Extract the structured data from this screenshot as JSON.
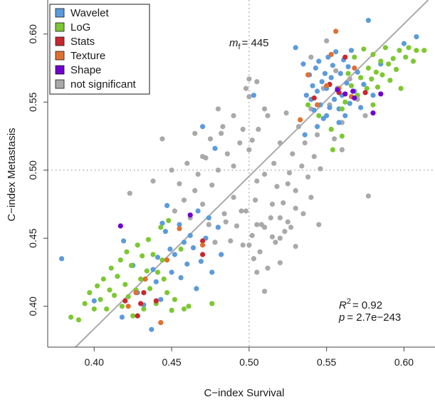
{
  "chart_data": {
    "type": "scatter",
    "title": "",
    "xlabel": "C−index Survival",
    "ylabel": "C−index Metastasis",
    "xlim": [
      0.37,
      0.62
    ],
    "ylim": [
      0.37,
      0.625
    ],
    "xticks": [
      0.4,
      0.45,
      0.5,
      0.55,
      0.6
    ],
    "xtick_labels": [
      "0.40",
      "0.45",
      "0.50",
      "0.55",
      "0.60"
    ],
    "yticks": [
      0.4,
      0.45,
      0.5,
      0.55,
      0.6
    ],
    "ytick_labels": [
      "0.40",
      "0.45",
      "0.50",
      "0.55",
      "0.60"
    ],
    "grid": false,
    "legend_position": "top-left",
    "reference_lines": {
      "vertical_x": 0.5,
      "horizontal_y": 0.5,
      "style": "dotted"
    },
    "regression_line": {
      "slope": 1.12,
      "intercept": -0.0645,
      "color": "#aaaaaa"
    },
    "annotations": {
      "mf_base": "m",
      "mf_sub": "f",
      "mf_value": "= 445",
      "r2_base": "R",
      "r2_sup": "2",
      "r2_value": "= 0.92",
      "p_base": "p",
      "p_value": "= 2.7e−243"
    },
    "series": [
      {
        "name": "Wavelet",
        "color": "#5b9bdc",
        "points": [
          [
            0.379,
            0.435
          ],
          [
            0.4,
            0.404
          ],
          [
            0.418,
            0.392
          ],
          [
            0.419,
            0.448
          ],
          [
            0.425,
            0.43
          ],
          [
            0.428,
            0.41
          ],
          [
            0.432,
            0.401
          ],
          [
            0.433,
            0.42
          ],
          [
            0.437,
            0.383
          ],
          [
            0.438,
            0.427
          ],
          [
            0.44,
            0.418
          ],
          [
            0.441,
            0.436
          ],
          [
            0.443,
            0.405
          ],
          [
            0.444,
            0.461
          ],
          [
            0.446,
            0.455
          ],
          [
            0.447,
            0.474
          ],
          [
            0.449,
            0.442
          ],
          [
            0.45,
            0.425
          ],
          [
            0.452,
            0.438
          ],
          [
            0.455,
            0.46
          ],
          [
            0.456,
            0.421
          ],
          [
            0.458,
            0.447
          ],
          [
            0.46,
            0.431
          ],
          [
            0.462,
            0.452
          ],
          [
            0.464,
            0.443
          ],
          [
            0.466,
            0.413
          ],
          [
            0.467,
            0.47
          ],
          [
            0.469,
            0.433
          ],
          [
            0.47,
            0.532
          ],
          [
            0.472,
            0.45
          ],
          [
            0.474,
            0.465
          ],
          [
            0.476,
            0.425
          ],
          [
            0.478,
            0.516
          ],
          [
            0.48,
            0.458
          ],
          [
            0.482,
            0.438
          ],
          [
            0.503,
            0.555
          ],
          [
            0.53,
            0.59
          ],
          [
            0.535,
            0.578
          ],
          [
            0.537,
            0.555
          ],
          [
            0.539,
            0.57
          ],
          [
            0.54,
            0.552
          ],
          [
            0.541,
            0.562
          ],
          [
            0.542,
            0.544
          ],
          [
            0.543,
            0.575
          ],
          [
            0.544,
            0.558
          ],
          [
            0.545,
            0.58
          ],
          [
            0.546,
            0.548
          ],
          [
            0.547,
            0.565
          ],
          [
            0.548,
            0.538
          ],
          [
            0.549,
            0.571
          ],
          [
            0.55,
            0.56
          ],
          [
            0.551,
            0.583
          ],
          [
            0.552,
            0.546
          ],
          [
            0.553,
            0.568
          ],
          [
            0.554,
            0.577
          ],
          [
            0.555,
            0.552
          ],
          [
            0.556,
            0.587
          ],
          [
            0.557,
            0.56
          ],
          [
            0.558,
            0.545
          ],
          [
            0.559,
            0.571
          ],
          [
            0.56,
            0.555
          ],
          [
            0.561,
            0.581
          ],
          [
            0.562,
            0.54
          ],
          [
            0.563,
            0.564
          ],
          [
            0.564,
            0.576
          ],
          [
            0.565,
            0.549
          ],
          [
            0.566,
            0.588
          ],
          [
            0.568,
            0.558
          ],
          [
            0.57,
            0.572
          ],
          [
            0.572,
            0.546
          ],
          [
            0.574,
            0.563
          ],
          [
            0.577,
            0.61
          ],
          [
            0.58,
            0.555
          ],
          [
            0.585,
            0.578
          ],
          [
            0.6,
            0.593
          ],
          [
            0.608,
            0.598
          ],
          [
            0.536,
            0.526
          ],
          [
            0.544,
            0.532
          ],
          [
            0.55,
            0.54
          ],
          [
            0.558,
            0.535
          ]
        ]
      },
      {
        "name": "LoG",
        "color": "#7dc832",
        "points": [
          [
            0.385,
            0.392
          ],
          [
            0.39,
            0.39
          ],
          [
            0.394,
            0.402
          ],
          [
            0.397,
            0.41
          ],
          [
            0.4,
            0.398
          ],
          [
            0.402,
            0.415
          ],
          [
            0.404,
            0.405
          ],
          [
            0.406,
            0.42
          ],
          [
            0.408,
            0.398
          ],
          [
            0.41,
            0.412
          ],
          [
            0.411,
            0.428
          ],
          [
            0.413,
            0.408
          ],
          [
            0.415,
            0.422
          ],
          [
            0.417,
            0.434
          ],
          [
            0.418,
            0.4
          ],
          [
            0.42,
            0.416
          ],
          [
            0.421,
            0.44
          ],
          [
            0.422,
            0.407
          ],
          [
            0.424,
            0.43
          ],
          [
            0.425,
            0.393
          ],
          [
            0.427,
            0.412
          ],
          [
            0.428,
            0.445
          ],
          [
            0.43,
            0.42
          ],
          [
            0.431,
            0.437
          ],
          [
            0.432,
            0.398
          ],
          [
            0.434,
            0.426
          ],
          [
            0.435,
            0.449
          ],
          [
            0.436,
            0.413
          ],
          [
            0.438,
            0.438
          ],
          [
            0.44,
            0.402
          ],
          [
            0.441,
            0.425
          ],
          [
            0.443,
            0.458
          ],
          [
            0.444,
            0.434
          ],
          [
            0.445,
            0.42
          ],
          [
            0.447,
            0.41
          ],
          [
            0.448,
            0.463
          ],
          [
            0.45,
            0.397
          ],
          [
            0.452,
            0.405
          ],
          [
            0.456,
            0.442
          ],
          [
            0.458,
            0.398
          ],
          [
            0.461,
            0.4
          ],
          [
            0.476,
            0.402
          ],
          [
            0.538,
            0.548
          ],
          [
            0.545,
            0.54
          ],
          [
            0.553,
            0.53
          ],
          [
            0.56,
            0.525
          ],
          [
            0.562,
            0.55
          ],
          [
            0.564,
            0.571
          ],
          [
            0.566,
            0.562
          ],
          [
            0.568,
            0.583
          ],
          [
            0.57,
            0.555
          ],
          [
            0.572,
            0.568
          ],
          [
            0.574,
            0.589
          ],
          [
            0.576,
            0.56
          ],
          [
            0.577,
            0.575
          ],
          [
            0.579,
            0.567
          ],
          [
            0.58,
            0.585
          ],
          [
            0.582,
            0.572
          ],
          [
            0.583,
            0.561
          ],
          [
            0.585,
            0.58
          ],
          [
            0.586,
            0.57
          ],
          [
            0.588,
            0.59
          ],
          [
            0.59,
            0.578
          ],
          [
            0.591,
            0.566
          ],
          [
            0.593,
            0.582
          ],
          [
            0.595,
            0.574
          ],
          [
            0.597,
            0.588
          ],
          [
            0.598,
            0.56
          ],
          [
            0.601,
            0.583
          ],
          [
            0.603,
            0.59
          ],
          [
            0.606,
            0.58
          ],
          [
            0.608,
            0.588
          ],
          [
            0.613,
            0.588
          ],
          [
            0.554,
            0.515
          ],
          [
            0.58,
            0.548
          ],
          [
            0.56,
            0.545
          ]
        ]
      },
      {
        "name": "Stats",
        "color": "#c8282d",
        "points": [
          [
            0.42,
            0.404
          ],
          [
            0.428,
            0.393
          ],
          [
            0.43,
            0.402
          ],
          [
            0.432,
            0.41
          ],
          [
            0.44,
            0.404
          ],
          [
            0.47,
            0.438
          ],
          [
            0.47,
            0.448
          ],
          [
            0.542,
            0.553
          ],
          [
            0.552,
            0.563
          ],
          [
            0.558,
            0.557
          ],
          [
            0.562,
            0.583
          ],
          [
            0.575,
            0.557
          ]
        ]
      },
      {
        "name": "Texture",
        "color": "#e07030",
        "points": [
          [
            0.422,
            0.4
          ],
          [
            0.427,
            0.41
          ],
          [
            0.433,
            0.42
          ],
          [
            0.443,
            0.388
          ],
          [
            0.447,
            0.434
          ],
          [
            0.455,
            0.457
          ],
          [
            0.47,
            0.445
          ],
          [
            0.533,
            0.537
          ],
          [
            0.538,
            0.57
          ],
          [
            0.544,
            0.548
          ],
          [
            0.55,
            0.562
          ],
          [
            0.553,
            0.585
          ],
          [
            0.556,
            0.602
          ],
          [
            0.558,
            0.56
          ],
          [
            0.566,
            0.554
          ],
          [
            0.568,
            0.575
          ]
        ]
      },
      {
        "name": "Shape",
        "color": "#7000d0",
        "points": [
          [
            0.417,
            0.459
          ],
          [
            0.462,
            0.467
          ],
          [
            0.557,
            0.559
          ],
          [
            0.562,
            0.556
          ],
          [
            0.567,
            0.558
          ],
          [
            0.568,
            0.553
          ],
          [
            0.58,
            0.542
          ],
          [
            0.585,
            0.556
          ]
        ]
      },
      {
        "name": "not significant",
        "color": "#a9a9a9",
        "points": [
          [
            0.423,
            0.483
          ],
          [
            0.438,
            0.492
          ],
          [
            0.444,
            0.523
          ],
          [
            0.45,
            0.5
          ],
          [
            0.452,
            0.47
          ],
          [
            0.455,
            0.49
          ],
          [
            0.458,
            0.478
          ],
          [
            0.46,
            0.505
          ],
          [
            0.462,
            0.465
          ],
          [
            0.465,
            0.485
          ],
          [
            0.467,
            0.497
          ],
          [
            0.47,
            0.475
          ],
          [
            0.472,
            0.509
          ],
          [
            0.474,
            0.46
          ],
          [
            0.476,
            0.489
          ],
          [
            0.478,
            0.447
          ],
          [
            0.48,
            0.5
          ],
          [
            0.482,
            0.527
          ],
          [
            0.484,
            0.468
          ],
          [
            0.486,
            0.512
          ],
          [
            0.488,
            0.448
          ],
          [
            0.49,
            0.503
          ],
          [
            0.492,
            0.459
          ],
          [
            0.494,
            0.52
          ],
          [
            0.496,
            0.445
          ],
          [
            0.498,
            0.47
          ],
          [
            0.5,
            0.515
          ],
          [
            0.502,
            0.452
          ],
          [
            0.504,
            0.478
          ],
          [
            0.506,
            0.53
          ],
          [
            0.508,
            0.46
          ],
          [
            0.51,
            0.497
          ],
          [
            0.512,
            0.54
          ],
          [
            0.514,
            0.465
          ],
          [
            0.516,
            0.505
          ],
          [
            0.518,
            0.488
          ],
          [
            0.52,
            0.52
          ],
          [
            0.522,
            0.476
          ],
          [
            0.524,
            0.542
          ],
          [
            0.526,
            0.498
          ],
          [
            0.528,
            0.512
          ],
          [
            0.53,
            0.485
          ],
          [
            0.532,
            0.532
          ],
          [
            0.534,
            0.503
          ],
          [
            0.536,
            0.52
          ],
          [
            0.538,
            0.495
          ],
          [
            0.54,
            0.545
          ],
          [
            0.542,
            0.51
          ],
          [
            0.544,
            0.526
          ],
          [
            0.546,
            0.501
          ],
          [
            0.548,
            0.538
          ],
          [
            0.5,
            0.445
          ],
          [
            0.503,
            0.435
          ],
          [
            0.505,
            0.46
          ],
          [
            0.507,
            0.44
          ],
          [
            0.51,
            0.411
          ],
          [
            0.512,
            0.428
          ],
          [
            0.515,
            0.451
          ],
          [
            0.52,
            0.432
          ],
          [
            0.525,
            0.462
          ],
          [
            0.53,
            0.444
          ],
          [
            0.485,
            0.462
          ],
          [
            0.49,
            0.48
          ],
          [
            0.495,
            0.47
          ],
          [
            0.505,
            0.492
          ],
          [
            0.51,
            0.458
          ],
          [
            0.515,
            0.475
          ],
          [
            0.52,
            0.465
          ],
          [
            0.525,
            0.49
          ],
          [
            0.53,
            0.472
          ],
          [
            0.535,
            0.468
          ],
          [
            0.54,
            0.48
          ],
          [
            0.545,
            0.46
          ],
          [
            0.5,
            0.554
          ],
          [
            0.505,
            0.565
          ],
          [
            0.51,
            0.545
          ],
          [
            0.5,
            0.567
          ],
          [
            0.548,
            0.56
          ],
          [
            0.552,
            0.548
          ],
          [
            0.556,
            0.573
          ],
          [
            0.56,
            0.535
          ],
          [
            0.565,
            0.567
          ],
          [
            0.57,
            0.552
          ],
          [
            0.575,
            0.54
          ],
          [
            0.577,
            0.481
          ],
          [
            0.555,
            0.523
          ],
          [
            0.56,
            0.515
          ],
          [
            0.49,
            0.54
          ],
          [
            0.48,
            0.545
          ],
          [
            0.47,
            0.51
          ],
          [
            0.465,
            0.527
          ],
          [
            0.475,
            0.523
          ],
          [
            0.483,
            0.532
          ],
          [
            0.496,
            0.53
          ],
          [
            0.498,
            0.56
          ],
          [
            0.502,
            0.522
          ],
          [
            0.54,
            0.583
          ],
          [
            0.55,
            0.595
          ],
          [
            0.517,
            0.447
          ],
          [
            0.52,
            0.45
          ],
          [
            0.523,
            0.455
          ],
          [
            0.527,
            0.458
          ],
          [
            0.505,
            0.425
          ]
        ]
      }
    ]
  }
}
